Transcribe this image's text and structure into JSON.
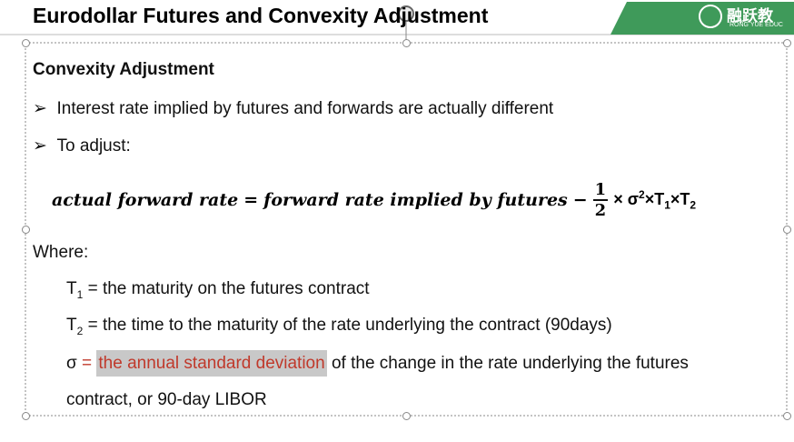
{
  "header": {
    "title": "Eurodollar Futures and Convexity Adjustment",
    "logo_cn": "融跃教",
    "logo_en": "RONG  YUE  EDUC"
  },
  "body": {
    "heading": "Convexity Adjustment",
    "bullets": [
      "Interest rate implied by futures and forwards are actually different",
      "To adjust:"
    ],
    "formula": {
      "lhs": "actual forward rate",
      "eq": "=",
      "rhs": "forward rate implied by futures",
      "minus": "−",
      "numerator": "1",
      "denominator": "2",
      "times": "× σ",
      "sq": "2",
      "t1": "×T",
      "t1_sub": "1",
      "t2": "×T",
      "t2_sub": "2"
    },
    "where": "Where:",
    "definitions": [
      {
        "symbol": "T",
        "sub": "1",
        "text": " = the maturity on the futures contract"
      },
      {
        "symbol": "T",
        "sub": "2",
        "text": " = the time to the maturity of the rate underlying the contract (90days)"
      }
    ],
    "sigma": {
      "symbol": "σ",
      "eq": " = ",
      "highlight": "the annual standard deviation",
      "rest": " of the change in the rate underlying the futures",
      "rest2": "contract, or 90-day LIBOR"
    }
  }
}
